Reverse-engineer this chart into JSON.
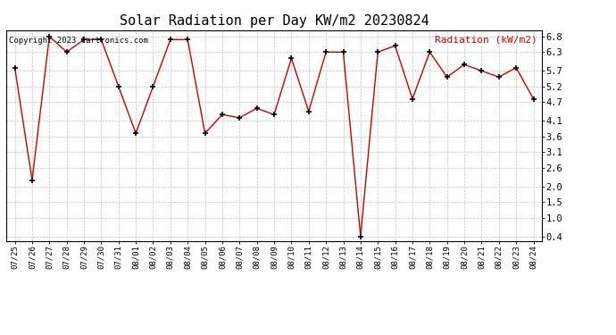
{
  "title": "Solar Radiation per Day KW/m2 20230824",
  "copyright_text": "Copyright 2023 Cartronics.com",
  "legend_label": "Radiation (kW/m2)",
  "dates": [
    "07/25",
    "07/26",
    "07/27",
    "07/28",
    "07/29",
    "07/30",
    "07/31",
    "08/01",
    "08/02",
    "08/03",
    "08/04",
    "08/05",
    "08/06",
    "08/07",
    "08/08",
    "08/09",
    "08/10",
    "08/11",
    "08/12",
    "08/13",
    "08/14",
    "08/15",
    "08/16",
    "08/17",
    "08/18",
    "08/19",
    "08/20",
    "08/21",
    "08/22",
    "08/23",
    "08/24"
  ],
  "values": [
    5.8,
    2.2,
    6.8,
    6.3,
    6.7,
    6.7,
    5.2,
    3.7,
    5.2,
    6.7,
    6.7,
    3.7,
    4.3,
    4.2,
    4.5,
    4.3,
    6.1,
    4.4,
    6.3,
    6.3,
    0.4,
    6.3,
    6.5,
    4.8,
    6.3,
    5.5,
    5.9,
    5.7,
    5.5,
    5.8,
    4.8
  ],
  "ylim_min": 0.25,
  "ylim_max": 7.0,
  "yticks": [
    0.4,
    1.0,
    1.5,
    2.0,
    2.6,
    3.1,
    3.6,
    4.1,
    4.7,
    5.2,
    5.7,
    6.3,
    6.8
  ],
  "line_color": "#cc0000",
  "marker_color": "#000000",
  "background_color": "#ffffff",
  "grid_color": "#bbbbbb",
  "title_fontsize": 11,
  "legend_color": "#cc0000",
  "copyright_color": "#000000",
  "copyright_fontsize": 6.5,
  "tick_fontsize": 6.5,
  "ytick_fontsize": 7.5
}
